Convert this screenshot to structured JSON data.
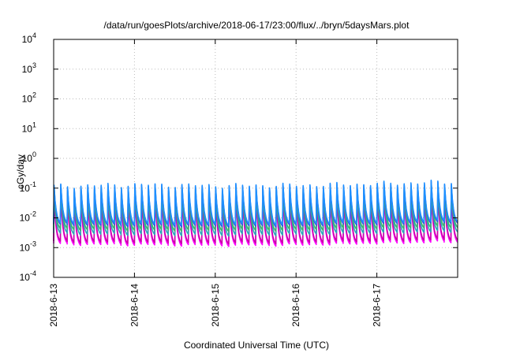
{
  "chart_data": {
    "type": "line",
    "title": "/data/run/goesPlots/archive/2018-06-17/23:00/flux/../bryn/5daysMars.plot",
    "xlabel": "Coordinated Universal Time (UTC)",
    "ylabel": "cGy/day",
    "y_scale": "log",
    "ylim_exp": [
      -4,
      4
    ],
    "y_ticks": [
      {
        "base": "10",
        "exp": "-4"
      },
      {
        "base": "10",
        "exp": "-3"
      },
      {
        "base": "10",
        "exp": "-2"
      },
      {
        "base": "10",
        "exp": "-1"
      },
      {
        "base": "10",
        "exp": "0"
      },
      {
        "base": "10",
        "exp": "1"
      },
      {
        "base": "10",
        "exp": "2"
      },
      {
        "base": "10",
        "exp": "3"
      },
      {
        "base": "10",
        "exp": "4"
      }
    ],
    "x_ticks": [
      "2018-6-13",
      "2018-6-14",
      "2018-6-15",
      "2018-6-16",
      "2018-6-17"
    ],
    "xlim_days": [
      0,
      5
    ],
    "grid": true,
    "legend": "none",
    "waveform": {
      "cycles_per_day": 12,
      "peak_log10_by_day": [
        -1.3,
        -1.25,
        -1.28,
        -1.27,
        -1.22,
        -1.15
      ],
      "trough_log10_by_day": [
        -2.78,
        -2.8,
        -2.82,
        -2.81,
        -2.75,
        -2.7
      ]
    },
    "series": [
      {
        "color": "#ff00ff",
        "offset_log10": -0.1
      },
      {
        "color": "#cc00aa",
        "offset_log10": -0.02
      },
      {
        "color": "#2aa8b8",
        "offset_log10": 0.25
      },
      {
        "color": "#3cb371",
        "offset_log10": 0.4
      },
      {
        "color": "#3050e0",
        "offset_log10": 0.55
      },
      {
        "color": "#1e90ff",
        "offset_log10": 0.6
      }
    ]
  }
}
